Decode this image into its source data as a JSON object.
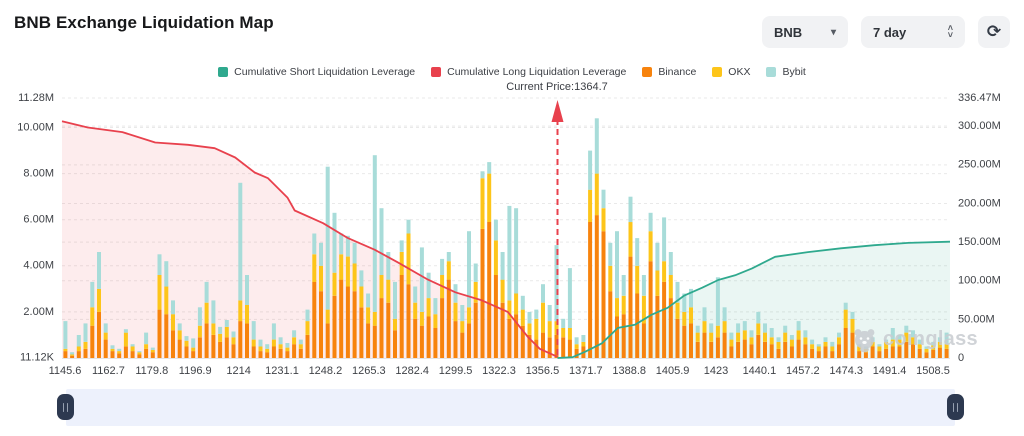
{
  "header": {
    "title": "BNB Exchange Liquidation Map"
  },
  "controls": {
    "symbol_value": "BNB",
    "period_value": "7 day"
  },
  "icons": {
    "symbol_caret": "▾",
    "stepper_up": "˄",
    "stepper_down": "˅",
    "refresh": "⟳"
  },
  "legend": [
    {
      "label": "Cumulative Short Liquidation Leverage",
      "color": "#2FA98E"
    },
    {
      "label": "Cumulative Long Liquidation Leverage",
      "color": "#E8414D"
    },
    {
      "label": "Binance",
      "color": "#F7830D"
    },
    {
      "label": "OKX",
      "color": "#FDC51A"
    },
    {
      "label": "Bybit",
      "color": "#A8DCD9"
    }
  ],
  "annotation": {
    "current_price_label": "Current Price:1364.7"
  },
  "watermark": {
    "text": "coinglass"
  },
  "chart_data": {
    "type": "bar",
    "title": "BNB Exchange Liquidation Map",
    "legend_position": "top",
    "grid": true,
    "x_axis": {
      "label": "price",
      "ticks": [
        "1145.6",
        "1162.7",
        "1179.8",
        "1196.9",
        "1214",
        "1231.1",
        "1248.2",
        "1265.3",
        "1282.4",
        "1299.5",
        "1322.3",
        "1356.5",
        "1371.7",
        "1388.8",
        "1405.9",
        "1423",
        "1440.1",
        "1457.2",
        "1474.3",
        "1491.4",
        "1508.5"
      ]
    },
    "left_axis": {
      "unit": "M",
      "max": 11.28,
      "tick_labels": [
        "11.28M",
        "10.00M",
        "8.00M",
        "6.00M",
        "4.00M",
        "2.00M",
        "11.12K"
      ],
      "tick_values": [
        11.28,
        10,
        8,
        6,
        4,
        2,
        0.01112
      ]
    },
    "right_axis": {
      "unit": "M",
      "max": 336.47,
      "tick_labels": [
        "336.47M",
        "300.00M",
        "250.00M",
        "200.00M",
        "150.00M",
        "100.00M",
        "50.00M",
        "0"
      ],
      "tick_values": [
        336.47,
        300,
        250,
        200,
        150,
        100,
        50,
        0
      ]
    },
    "bar_series": [
      {
        "name": "Binance",
        "color": "#F7830D"
      },
      {
        "name": "OKX",
        "color": "#FDC51A"
      },
      {
        "name": "Bybit",
        "color": "#A8DCD9"
      }
    ],
    "bars_unit": "millions USD on left axis, stacked [Binance, OKX, Bybit]",
    "bars": [
      [
        0.3,
        0.1,
        1.2
      ],
      [
        0.1,
        0.05,
        0.1
      ],
      [
        0.3,
        0.2,
        0.5
      ],
      [
        0.4,
        0.3,
        0.8
      ],
      [
        1.4,
        0.8,
        1.1
      ],
      [
        2.0,
        1.0,
        1.6
      ],
      [
        0.8,
        0.3,
        0.4
      ],
      [
        0.3,
        0.1,
        0.15
      ],
      [
        0.2,
        0.1,
        0.1
      ],
      [
        0.5,
        0.6,
        0.15
      ],
      [
        0.3,
        0.2,
        0.1
      ],
      [
        0.15,
        0.1,
        0.05
      ],
      [
        0.4,
        0.2,
        0.5
      ],
      [
        0.25,
        0.1,
        0.1
      ],
      [
        2.1,
        1.5,
        0.9
      ],
      [
        1.9,
        1.2,
        1.1
      ],
      [
        1.2,
        0.7,
        0.6
      ],
      [
        0.8,
        0.4,
        0.3
      ],
      [
        0.5,
        0.25,
        0.2
      ],
      [
        0.3,
        0.15,
        0.4
      ],
      [
        0.9,
        0.5,
        0.8
      ],
      [
        1.5,
        0.9,
        0.9
      ],
      [
        1.0,
        0.5,
        1.0
      ],
      [
        0.7,
        0.35,
        0.3
      ],
      [
        0.9,
        0.45,
        0.3
      ],
      [
        0.6,
        0.3,
        0.25
      ],
      [
        1.6,
        0.9,
        5.1
      ],
      [
        1.5,
        0.8,
        1.3
      ],
      [
        0.5,
        0.3,
        0.8
      ],
      [
        0.3,
        0.2,
        0.3
      ],
      [
        0.25,
        0.15,
        0.2
      ],
      [
        0.5,
        0.3,
        0.7
      ],
      [
        0.4,
        0.2,
        0.3
      ],
      [
        0.3,
        0.15,
        0.2
      ],
      [
        0.6,
        0.3,
        0.3
      ],
      [
        0.4,
        0.2,
        0.2
      ],
      [
        1.0,
        0.6,
        0.5
      ],
      [
        3.3,
        1.2,
        0.9
      ],
      [
        2.9,
        1.1,
        1.0
      ],
      [
        1.5,
        0.6,
        6.2
      ],
      [
        2.7,
        1.0,
        2.6
      ],
      [
        3.4,
        1.1,
        0.9
      ],
      [
        3.1,
        1.3,
        0.9
      ],
      [
        2.9,
        1.2,
        0.9
      ],
      [
        2.2,
        0.9,
        0.7
      ],
      [
        1.5,
        0.7,
        0.6
      ],
      [
        1.4,
        0.6,
        6.8
      ],
      [
        2.6,
        1.0,
        2.9
      ],
      [
        2.4,
        1.0,
        1.2
      ],
      [
        1.2,
        0.5,
        1.6
      ],
      [
        3.6,
        1.0,
        0.5
      ],
      [
        3.2,
        2.2,
        0.6
      ],
      [
        1.7,
        0.7,
        0.7
      ],
      [
        1.4,
        0.6,
        2.8
      ],
      [
        1.8,
        0.8,
        1.1
      ],
      [
        1.3,
        0.6,
        0.7
      ],
      [
        2.6,
        1.0,
        0.7
      ],
      [
        3.4,
        0.8,
        0.4
      ],
      [
        1.6,
        0.8,
        0.8
      ],
      [
        1.1,
        0.5,
        0.7
      ],
      [
        1.5,
        0.7,
        3.3
      ],
      [
        2.4,
        0.9,
        0.8
      ],
      [
        5.6,
        2.2,
        0.3
      ],
      [
        5.9,
        2.1,
        0.5
      ],
      [
        3.6,
        1.5,
        0.9
      ],
      [
        2.4,
        1.0,
        1.2
      ],
      [
        1.7,
        0.8,
        4.1
      ],
      [
        1.9,
        0.9,
        3.7
      ],
      [
        1.4,
        0.7,
        0.6
      ],
      [
        1.0,
        0.5,
        0.5
      ],
      [
        0.8,
        0.9,
        0.4
      ],
      [
        1.1,
        1.3,
        0.8
      ],
      [
        0.9,
        0.7,
        0.7
      ],
      [
        1.0,
        0.6,
        3.3
      ],
      [
        0.9,
        0.4,
        0.4
      ],
      [
        0.8,
        0.5,
        2.6
      ],
      [
        0.4,
        0.2,
        0.3
      ],
      [
        0.5,
        0.2,
        0.3
      ],
      [
        5.9,
        1.4,
        1.7
      ],
      [
        6.2,
        1.8,
        2.4
      ],
      [
        5.5,
        1.0,
        0.8
      ],
      [
        2.9,
        1.1,
        1.0
      ],
      [
        1.8,
        0.8,
        2.9
      ],
      [
        1.9,
        0.8,
        0.9
      ],
      [
        4.4,
        1.5,
        1.1
      ],
      [
        2.8,
        1.2,
        1.2
      ],
      [
        1.5,
        1.2,
        0.9
      ],
      [
        4.2,
        1.3,
        0.8
      ],
      [
        2.7,
        1.1,
        1.2
      ],
      [
        3.3,
        0.9,
        1.9
      ],
      [
        2.6,
        1.0,
        1.0
      ],
      [
        1.7,
        0.7,
        0.9
      ],
      [
        1.4,
        0.6,
        0.8
      ],
      [
        1.5,
        0.7,
        0.8
      ],
      [
        0.7,
        0.4,
        0.3
      ],
      [
        1.1,
        0.5,
        0.6
      ],
      [
        0.7,
        0.4,
        0.4
      ],
      [
        0.9,
        0.5,
        2.1
      ],
      [
        1.1,
        0.5,
        0.6
      ],
      [
        0.5,
        0.3,
        0.3
      ],
      [
        0.7,
        0.4,
        0.4
      ],
      [
        0.8,
        0.4,
        0.4
      ],
      [
        0.6,
        0.3,
        0.3
      ],
      [
        1.0,
        0.5,
        0.5
      ],
      [
        0.7,
        0.4,
        0.4
      ],
      [
        0.6,
        0.3,
        0.4
      ],
      [
        0.4,
        0.3,
        0.2
      ],
      [
        0.7,
        0.4,
        0.3
      ],
      [
        0.5,
        0.3,
        0.2
      ],
      [
        0.8,
        0.4,
        0.4
      ],
      [
        0.6,
        0.3,
        0.3
      ],
      [
        0.4,
        0.2,
        0.2
      ],
      [
        0.3,
        0.2,
        0.1
      ],
      [
        0.5,
        0.2,
        0.2
      ],
      [
        0.3,
        0.2,
        0.2
      ],
      [
        0.6,
        0.3,
        0.2
      ],
      [
        1.3,
        0.8,
        0.3
      ],
      [
        1.1,
        0.6,
        0.3
      ],
      [
        0.3,
        0.2,
        0.1
      ],
      [
        0.25,
        0.15,
        0.1
      ],
      [
        0.5,
        0.2,
        0.2
      ],
      [
        0.3,
        0.2,
        0.1
      ],
      [
        0.4,
        0.3,
        0.1
      ],
      [
        0.5,
        0.3,
        0.5
      ],
      [
        0.5,
        0.3,
        0.2
      ],
      [
        0.7,
        0.4,
        0.3
      ],
      [
        0.6,
        0.3,
        0.3
      ],
      [
        0.4,
        0.2,
        0.2
      ],
      [
        0.25,
        0.15,
        0.1
      ],
      [
        0.35,
        0.2,
        0.15
      ],
      [
        0.45,
        0.25,
        0.2
      ],
      [
        0.4,
        0.2,
        0.5
      ]
    ],
    "lines": [
      {
        "name": "Cumulative Long Liquidation Leverage",
        "axis": "left",
        "color": "#E8414D",
        "fill": "rgba(232,65,77,0.10)",
        "points": [
          [
            0,
            10.27
          ],
          [
            0.029,
            10.0
          ],
          [
            0.068,
            9.8
          ],
          [
            0.105,
            9.35
          ],
          [
            0.142,
            9.25
          ],
          [
            0.172,
            9.1
          ],
          [
            0.195,
            8.7
          ],
          [
            0.217,
            8.05
          ],
          [
            0.232,
            7.8
          ],
          [
            0.254,
            6.95
          ],
          [
            0.262,
            6.4
          ],
          [
            0.294,
            5.85
          ],
          [
            0.322,
            5.2
          ],
          [
            0.352,
            4.7
          ],
          [
            0.378,
            4.15
          ],
          [
            0.412,
            3.4
          ],
          [
            0.443,
            2.85
          ],
          [
            0.473,
            2.5
          ],
          [
            0.502,
            2.0
          ],
          [
            0.525,
            0.9
          ],
          [
            0.538,
            0.4
          ],
          [
            0.558,
            0.05
          ]
        ]
      },
      {
        "name": "Cumulative Short Liquidation Leverage",
        "axis": "right",
        "color": "#2FA98E",
        "fill": "rgba(47,169,142,0.10)",
        "points": [
          [
            0.558,
            0
          ],
          [
            0.575,
            1
          ],
          [
            0.589,
            8
          ],
          [
            0.608,
            19
          ],
          [
            0.626,
            39
          ],
          [
            0.645,
            43
          ],
          [
            0.664,
            56
          ],
          [
            0.682,
            65
          ],
          [
            0.701,
            81
          ],
          [
            0.721,
            91
          ],
          [
            0.739,
            101
          ],
          [
            0.758,
            107
          ],
          [
            0.777,
            116
          ],
          [
            0.803,
            131
          ],
          [
            0.84,
            137
          ],
          [
            0.877,
            142
          ],
          [
            0.915,
            146
          ],
          [
            0.953,
            149
          ],
          [
            1.0,
            150.5
          ]
        ]
      }
    ],
    "current_price": {
      "value": 1364.7,
      "fraction": 0.558,
      "color": "#E8414D"
    }
  }
}
